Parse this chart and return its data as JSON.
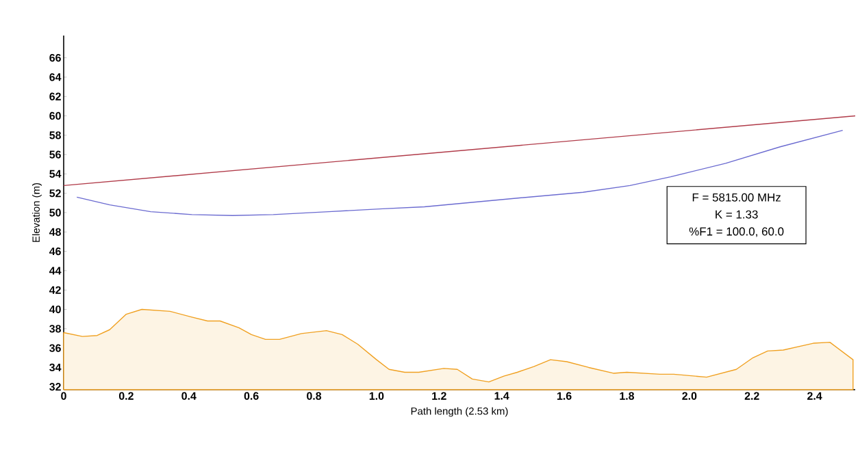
{
  "chart_data": {
    "type": "line",
    "xlabel": "Path length (2.53 km)",
    "ylabel": "Elevation (m)",
    "xlim": [
      0,
      2.53
    ],
    "ylim": [
      31.7,
      68.3
    ],
    "xticks": [
      0,
      {
        "value": 0.2,
        "label": "0.2"
      },
      {
        "value": 0.4,
        "label": "0.4"
      },
      {
        "value": 0.6,
        "label": "0.6"
      },
      {
        "value": 0.8,
        "label": "0.8"
      },
      {
        "value": 1.0,
        "label": "1.0"
      },
      {
        "value": 1.2,
        "label": "1.2"
      },
      {
        "value": 1.4,
        "label": "1.4"
      },
      {
        "value": 1.6,
        "label": "1.6"
      },
      {
        "value": 1.8,
        "label": "1.8"
      },
      {
        "value": 2.0,
        "label": "2.0"
      },
      {
        "value": 2.2,
        "label": "2.2"
      },
      {
        "value": 2.4,
        "label": "2.4"
      }
    ],
    "yticks": [
      32,
      34,
      36,
      38,
      40,
      42,
      44,
      46,
      48,
      50,
      52,
      54,
      56,
      58,
      60,
      62,
      64,
      66
    ],
    "grid": false,
    "annotations": [
      "F = 5815.00 MHz",
      "K = 1.33",
      "%F1 = 100.0, 60.0"
    ],
    "series": [
      {
        "type": "area",
        "color": "#f0a020",
        "x": [
          0,
          0.06,
          0.107,
          0.147,
          0.2,
          0.25,
          0.34,
          0.41,
          0.46,
          0.5,
          0.56,
          0.6,
          0.645,
          0.69,
          0.76,
          0.84,
          0.89,
          0.94,
          1.0,
          1.04,
          1.09,
          1.135,
          1.215,
          1.258,
          1.306,
          1.359,
          1.407,
          1.45,
          1.503,
          1.556,
          1.608,
          1.678,
          1.757,
          1.8,
          1.906,
          1.95,
          2.055,
          2.15,
          2.203,
          2.25,
          2.3,
          2.396,
          2.449,
          2.523
        ],
        "values": [
          37.6,
          37.2,
          37.3,
          37.9,
          39.5,
          40.0,
          39.8,
          39.2,
          38.8,
          38.8,
          38.1,
          37.4,
          36.9,
          36.9,
          37.5,
          37.8,
          37.4,
          36.4,
          34.8,
          33.8,
          33.5,
          33.5,
          33.9,
          33.8,
          32.8,
          32.5,
          33.1,
          33.5,
          34.1,
          34.8,
          34.6,
          34.0,
          33.4,
          33.5,
          33.3,
          33.3,
          33.0,
          33.8,
          35.0,
          35.7,
          35.8,
          36.5,
          36.6,
          34.8
        ]
      },
      {
        "color": "#b03a48",
        "x": [
          0,
          2.53
        ],
        "values": [
          52.8,
          60.0
        ]
      },
      {
        "color": "#6a6ad0",
        "x": [
          0.042,
          0.147,
          0.278,
          0.41,
          0.54,
          0.67,
          0.847,
          1.02,
          1.153,
          1.416,
          1.66,
          1.81,
          1.94,
          2.116,
          2.29,
          2.49
        ],
        "values": [
          51.6,
          50.8,
          50.1,
          49.8,
          49.7,
          49.8,
          50.1,
          50.4,
          50.6,
          51.4,
          52.1,
          52.8,
          53.7,
          55.1,
          56.8,
          58.5
        ]
      }
    ]
  }
}
